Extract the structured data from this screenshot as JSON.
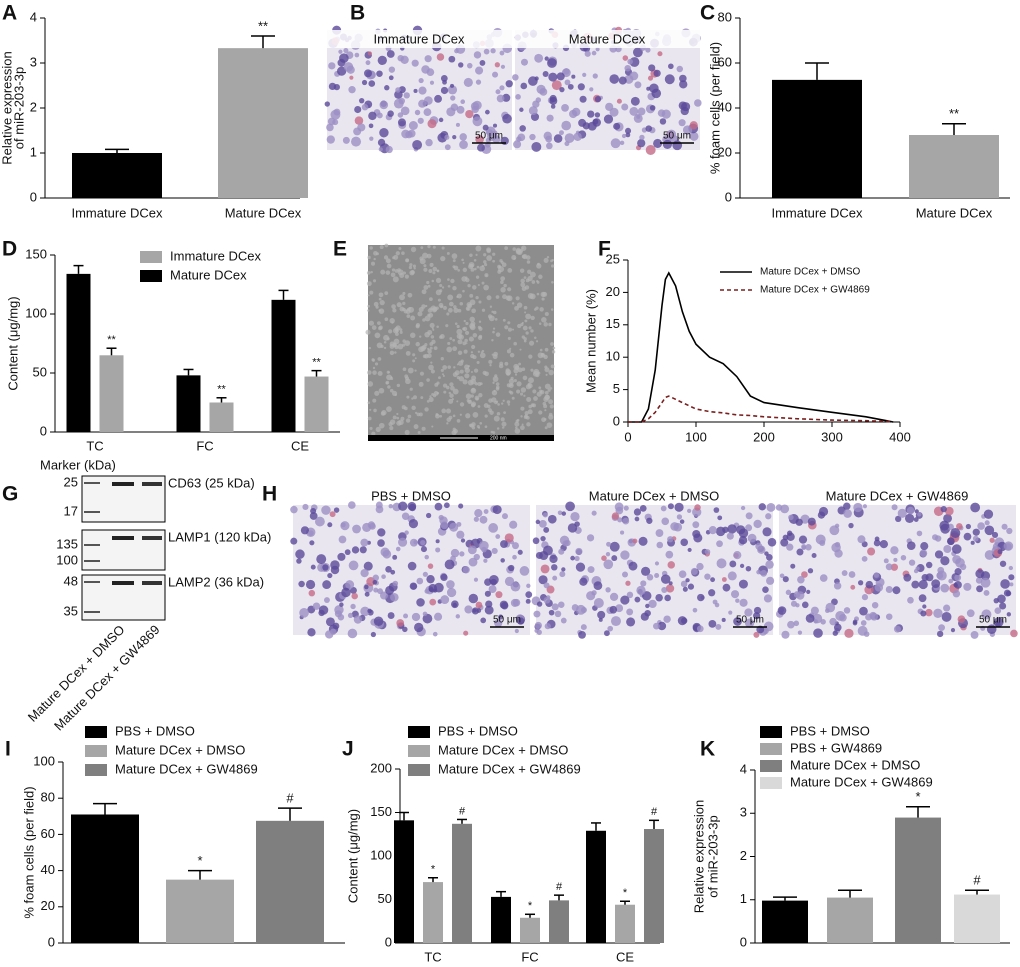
{
  "panels": [
    "A",
    "B",
    "C",
    "D",
    "E",
    "F",
    "G",
    "H",
    "I",
    "J",
    "K"
  ],
  "chart_data": [
    {
      "type": "bar",
      "ylabel": [
        "Relative expression",
        "of miR-203-3p"
      ],
      "categories": [
        "Immature DCex",
        "Mature DCex"
      ],
      "values": [
        1.0,
        3.33
      ],
      "errors": [
        0.08,
        0.27
      ],
      "colors": [
        "#000000",
        "#a6a6a6"
      ],
      "significance": [
        null,
        "**"
      ],
      "ylim": [
        0,
        4
      ],
      "yticks": [
        0,
        1,
        2,
        3,
        4
      ],
      "legend": false
    },
    {
      "type": "bar",
      "ylabel": [
        "% foam cells (per field)"
      ],
      "categories": [
        "Immature DCex",
        "Mature DCex"
      ],
      "values": [
        52.5,
        28
      ],
      "errors": [
        7.5,
        5
      ],
      "colors": [
        "#000000",
        "#a6a6a6"
      ],
      "significance": [
        null,
        "**"
      ],
      "ylim": [
        0,
        80
      ],
      "yticks": [
        0,
        20,
        40,
        60,
        80
      ],
      "legend": false
    },
    {
      "type": "grouped_bar",
      "ylabel": [
        "Content (μg/mg)"
      ],
      "categories": [
        "TC",
        "FC",
        "CE"
      ],
      "series": [
        {
          "name": "Immature DCex",
          "color": "#a6a6a6",
          "values": [
            65,
            25,
            47
          ],
          "errors": [
            6,
            4,
            5
          ],
          "significance": [
            "**",
            "**",
            "**"
          ]
        },
        {
          "name": "Mature DCex",
          "color": "#000000",
          "values": [
            134,
            48,
            112
          ],
          "errors": [
            7,
            5,
            8
          ],
          "significance": [
            null,
            null,
            null
          ]
        }
      ],
      "ylim": [
        0,
        150
      ],
      "yticks": [
        0,
        50,
        100,
        150
      ],
      "legend": true
    },
    {
      "type": "line",
      "ylabel": [
        "Mean number (%)"
      ],
      "x": [
        0,
        20,
        30,
        40,
        50,
        55,
        60,
        70,
        80,
        90,
        100,
        120,
        140,
        160,
        180,
        200,
        250,
        300,
        350,
        380,
        390
      ],
      "series": [
        {
          "name": "Mature DCex + DMSO",
          "color": "#000000",
          "dashed": false,
          "values": [
            0,
            0,
            2,
            8,
            18,
            22,
            23,
            21,
            17,
            14,
            12,
            10,
            9,
            7,
            4,
            3,
            2.2,
            1.5,
            0.8,
            0.2,
            0
          ]
        },
        {
          "name": "Mature DCex + GW4869",
          "color": "#7a1f1f",
          "dashed": true,
          "values": [
            0,
            0,
            0.5,
            1.5,
            3,
            3.8,
            4,
            3.5,
            3,
            2.5,
            2,
            1.6,
            1.4,
            1.1,
            1,
            0.8,
            0.5,
            0.3,
            0.2,
            0.1,
            0
          ]
        }
      ],
      "xlim": [
        0,
        400
      ],
      "xticks": [
        0,
        100,
        200,
        300,
        400
      ],
      "ylim": [
        0,
        25
      ],
      "yticks": [
        0,
        5,
        10,
        15,
        20,
        25
      ],
      "legend": true
    },
    {
      "type": "bar",
      "ylabel": [
        "% foam cells (per field)"
      ],
      "categories": [
        "PBS + DMSO",
        "Mature DCex + DMSO",
        "Mature DCex + GW4869"
      ],
      "values": [
        71,
        35,
        67.5
      ],
      "errors": [
        6,
        5,
        7
      ],
      "colors": [
        "#000000",
        "#a6a6a6",
        "#7f7f7f"
      ],
      "significance": [
        null,
        "*",
        "#"
      ],
      "ylim": [
        0,
        100
      ],
      "yticks": [
        0,
        20,
        40,
        60,
        80,
        100
      ],
      "legend": true
    },
    {
      "type": "grouped_bar",
      "ylabel": [
        "Content (μg/mg)"
      ],
      "categories": [
        "TC",
        "FC",
        "CE"
      ],
      "series": [
        {
          "name": "PBS + DMSO",
          "color": "#000000",
          "values": [
            141,
            53,
            129
          ],
          "errors": [
            9,
            6,
            9
          ],
          "significance": [
            null,
            null,
            null
          ]
        },
        {
          "name": "Mature DCex + DMSO",
          "color": "#a6a6a6",
          "values": [
            70,
            29,
            44
          ],
          "errors": [
            5,
            4,
            4
          ],
          "significance": [
            "*",
            "*",
            "*"
          ]
        },
        {
          "name": "Mature DCex + GW4869",
          "color": "#7f7f7f",
          "values": [
            137,
            49,
            131
          ],
          "errors": [
            5,
            6,
            10
          ],
          "significance": [
            "#",
            "#",
            "#"
          ]
        }
      ],
      "ylim": [
        0,
        200
      ],
      "yticks": [
        0,
        50,
        100,
        150,
        200
      ],
      "legend": true
    },
    {
      "type": "bar",
      "ylabel": [
        "Relative expression",
        "of miR-203-3p"
      ],
      "categories": [
        "PBS + DMSO",
        "PBS + GW4869",
        "Mature DCex + DMSO",
        "Mature DCex + GW4869"
      ],
      "values": [
        0.98,
        1.05,
        2.9,
        1.12
      ],
      "errors": [
        0.08,
        0.17,
        0.25,
        0.1
      ],
      "colors": [
        "#000000",
        "#a6a6a6",
        "#7f7f7f",
        "#d9d9d9"
      ],
      "significance": [
        null,
        null,
        "*",
        "#"
      ],
      "ylim": [
        0,
        4
      ],
      "yticks": [
        0,
        1,
        2,
        3,
        4
      ],
      "legend": true
    }
  ],
  "images_b": {
    "titles": [
      "Immature DCex",
      "Mature DCex"
    ],
    "scale": "50 μm"
  },
  "image_e": {
    "scale": "200 nm"
  },
  "images_h": {
    "titles": [
      "PBS + DMSO",
      "Mature DCex + DMSO",
      "Mature DCex + GW4869"
    ],
    "scale": "50 μm"
  },
  "blot": {
    "marker_title": "Marker (kDa)",
    "markers": [
      25,
      17,
      135,
      100,
      48,
      35
    ],
    "bands": [
      "CD63 (25 kDa)",
      "LAMP1 (120 kDa)",
      "LAMP2 (36 kDa)"
    ],
    "lanes": [
      "Mature DCex + DMSO",
      "Mature DCex + GW4869"
    ]
  }
}
